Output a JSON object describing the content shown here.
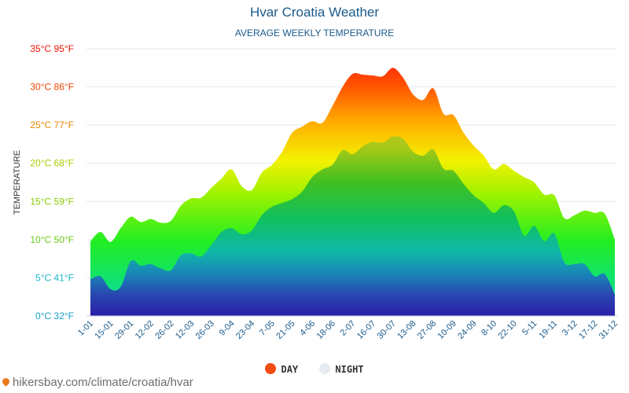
{
  "chart_data": {
    "type": "area",
    "title": "Hvar Croatia Weather",
    "subtitle": "AVERAGE WEEKLY TEMPERATURE",
    "ylabel": "TEMPERATURE",
    "ylim": [
      0,
      35
    ],
    "yticks": [
      {
        "value": 0,
        "label": "0°C 32°F",
        "color": "#1aa0c8"
      },
      {
        "value": 5,
        "label": "5°C 41°F",
        "color": "#1ab8c8"
      },
      {
        "value": 10,
        "label": "10°C 50°F",
        "color": "#66cc11"
      },
      {
        "value": 15,
        "label": "15°C 59°F",
        "color": "#88cc00"
      },
      {
        "value": 20,
        "label": "20°C 68°F",
        "color": "#aacc00"
      },
      {
        "value": 25,
        "label": "25°C 77°F",
        "color": "#ee8800"
      },
      {
        "value": 30,
        "label": "30°C 86°F",
        "color": "#ee4400"
      },
      {
        "value": 35,
        "label": "35°C 95°F",
        "color": "#ee1100"
      }
    ],
    "xtick_labels": [
      "1-01",
      "15-01",
      "29-01",
      "12-02",
      "26-02",
      "12-03",
      "26-03",
      "9-04",
      "23-04",
      "7-05",
      "21-05",
      "4-06",
      "18-06",
      "2-07",
      "16-07",
      "30-07",
      "13-08",
      "27-08",
      "10-09",
      "24-09",
      "8-10",
      "22-10",
      "5-11",
      "19-11",
      "3-12",
      "17-12",
      "31-12"
    ],
    "series": [
      {
        "name": "DAY",
        "color": "#f04e12",
        "values": [
          9.8,
          11.0,
          9.7,
          11.5,
          13.0,
          12.3,
          12.7,
          12.2,
          12.5,
          14.5,
          15.4,
          15.5,
          16.8,
          18.0,
          19.2,
          17.0,
          16.5,
          18.8,
          19.8,
          21.5,
          24.0,
          24.8,
          25.5,
          25.3,
          27.5,
          30.0,
          31.7,
          31.6,
          31.5,
          31.4,
          32.5,
          31.2,
          29.0,
          28.3,
          29.8,
          26.5,
          26.3,
          24.0,
          22.3,
          21.0,
          19.2,
          19.9,
          19.0,
          18.2,
          17.5,
          15.9,
          15.8,
          12.8,
          13.2,
          13.8,
          13.5,
          13.4,
          10.0
        ]
      },
      {
        "name": "NIGHT",
        "color": "#e6ebf2",
        "values": [
          4.8,
          5.2,
          3.5,
          3.8,
          7.2,
          6.6,
          6.8,
          6.2,
          6.0,
          8.0,
          8.2,
          7.8,
          9.3,
          11.0,
          11.5,
          10.7,
          11.2,
          13.2,
          14.3,
          14.8,
          15.3,
          16.3,
          18.2,
          19.2,
          19.8,
          21.7,
          21.2,
          22.2,
          22.8,
          22.7,
          23.5,
          23.2,
          21.5,
          21.0,
          21.8,
          19.3,
          19.0,
          17.3,
          15.8,
          14.8,
          13.5,
          14.5,
          13.7,
          10.5,
          11.8,
          9.8,
          10.8,
          7.0,
          6.8,
          6.8,
          5.2,
          5.5,
          2.8
        ]
      }
    ]
  },
  "legend": {
    "day_label": "DAY",
    "night_label": "NIGHT",
    "day_color": "#f04e12",
    "night_color": "#e6ebf2"
  },
  "footer": {
    "text": "hikersbay.com/climate/croatia/hvar"
  }
}
